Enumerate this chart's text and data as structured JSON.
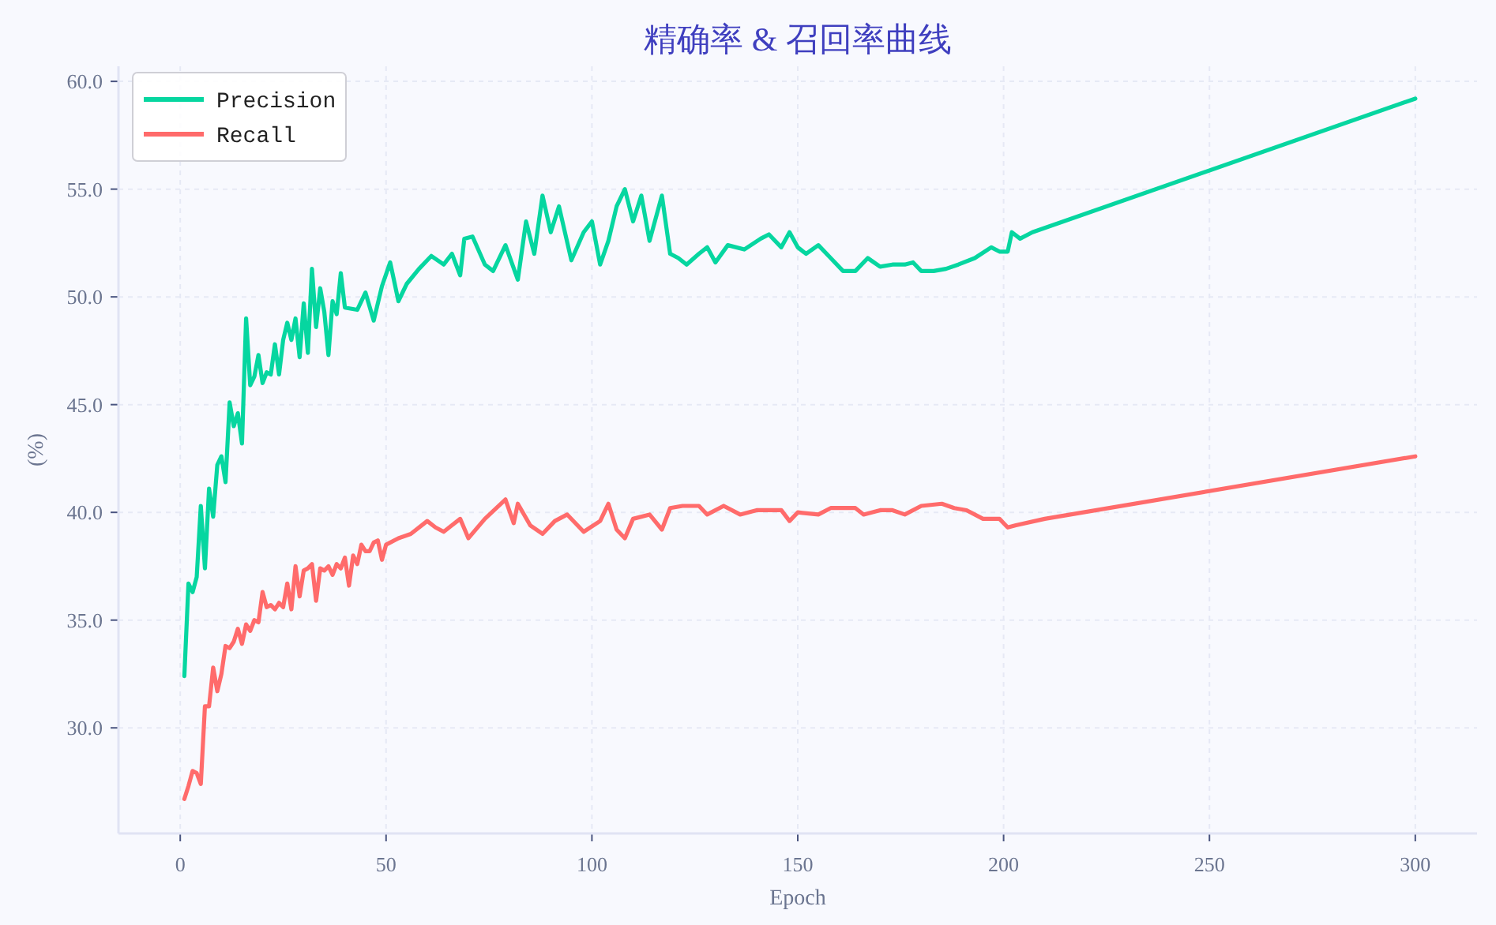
{
  "chart_data": {
    "type": "line",
    "title": "精确率 & 召回率曲线",
    "xlabel": "Epoch",
    "ylabel": "(%)",
    "xlim": [
      -15,
      315
    ],
    "ylim": [
      25.1,
      60.7
    ],
    "xticks": [
      0,
      50,
      100,
      150,
      200,
      250,
      300
    ],
    "yticks": [
      {
        "value": 30,
        "label": "30.0"
      },
      {
        "value": 35,
        "label": "35.0"
      },
      {
        "value": 40,
        "label": "40.0"
      },
      {
        "value": 45,
        "label": "45.0"
      },
      {
        "value": 50,
        "label": "50.0"
      },
      {
        "value": 55,
        "label": "55.0"
      },
      {
        "value": 60,
        "label": "60.0"
      }
    ],
    "grid": true,
    "legend": "top left",
    "marker": "none",
    "line_style": "solid",
    "series": [
      {
        "name": "Precision",
        "color": "#06d6a0",
        "x": [
          1,
          2,
          3,
          4,
          5,
          6,
          7,
          8,
          9,
          10,
          11,
          12,
          13,
          14,
          15,
          16,
          17,
          18,
          19,
          20,
          21,
          22,
          23,
          24,
          25,
          26,
          27,
          28,
          29,
          30,
          31,
          32,
          33,
          34,
          35,
          36,
          37,
          38,
          39,
          40,
          43,
          45,
          47,
          49,
          51,
          53,
          55,
          58,
          61,
          64,
          66,
          68,
          69,
          71,
          74,
          76,
          79,
          82,
          84,
          86,
          88,
          90,
          92,
          95,
          98,
          100,
          102,
          104,
          106,
          108,
          110,
          112,
          114,
          117,
          119,
          121,
          123,
          126,
          128,
          130,
          133,
          137,
          141,
          143,
          146,
          148,
          150,
          152,
          155,
          158,
          161,
          164,
          167,
          170,
          173,
          176,
          178,
          180,
          183,
          186,
          189,
          193,
          197,
          199,
          201,
          202,
          204,
          207,
          300
        ],
        "values": [
          32.4,
          36.7,
          36.3,
          37.0,
          40.3,
          37.4,
          41.1,
          39.8,
          42.2,
          42.6,
          41.4,
          45.1,
          44.0,
          44.6,
          43.2,
          49.0,
          45.9,
          46.3,
          47.3,
          46.0,
          46.5,
          46.4,
          47.8,
          46.4,
          48.0,
          48.8,
          48.0,
          49.0,
          47.2,
          49.7,
          47.4,
          51.3,
          48.6,
          50.4,
          49.3,
          47.3,
          49.8,
          49.2,
          51.1,
          49.5,
          49.4,
          50.2,
          48.9,
          50.5,
          51.6,
          49.8,
          50.6,
          51.3,
          51.9,
          51.5,
          52.0,
          51.0,
          52.7,
          52.8,
          51.5,
          51.2,
          52.4,
          50.8,
          53.5,
          52.0,
          54.7,
          53.0,
          54.2,
          51.7,
          53.0,
          53.5,
          51.5,
          52.6,
          54.2,
          55.0,
          53.5,
          54.7,
          52.6,
          54.7,
          52.0,
          51.8,
          51.5,
          52.0,
          52.3,
          51.6,
          52.4,
          52.2,
          52.7,
          52.9,
          52.3,
          53.0,
          52.3,
          52.0,
          52.4,
          51.8,
          51.2,
          51.2,
          51.8,
          51.4,
          51.5,
          51.5,
          51.6,
          51.2,
          51.2,
          51.3,
          51.5,
          51.8,
          52.3,
          52.1,
          52.1,
          53.0,
          52.7,
          53.0,
          59.2
        ]
      },
      {
        "name": "Recall",
        "color": "#ff6b6b",
        "x": [
          1,
          2,
          3,
          4,
          5,
          6,
          7,
          8,
          9,
          10,
          11,
          12,
          13,
          14,
          15,
          16,
          17,
          18,
          19,
          20,
          21,
          22,
          23,
          24,
          25,
          26,
          27,
          28,
          29,
          30,
          31,
          32,
          33,
          34,
          35,
          36,
          37,
          38,
          39,
          40,
          41,
          42,
          43,
          44,
          45,
          46,
          47,
          48,
          49,
          50,
          53,
          56,
          60,
          62,
          64,
          66,
          68,
          70,
          74,
          79,
          81,
          82,
          85,
          88,
          91,
          94,
          98,
          102,
          104,
          106,
          108,
          110,
          114,
          117,
          119,
          122,
          126,
          128,
          132,
          136,
          140,
          146,
          148,
          150,
          155,
          158,
          164,
          166,
          170,
          173,
          176,
          180,
          185,
          188,
          191,
          195,
          199,
          201,
          203,
          210,
          300
        ],
        "values": [
          26.7,
          27.3,
          28.0,
          27.9,
          27.4,
          31.0,
          31.0,
          32.8,
          31.7,
          32.5,
          33.8,
          33.7,
          34.0,
          34.6,
          33.9,
          34.8,
          34.5,
          35.0,
          34.9,
          36.3,
          35.6,
          35.7,
          35.5,
          35.8,
          35.6,
          36.7,
          35.5,
          37.5,
          36.1,
          37.3,
          37.4,
          37.6,
          35.9,
          37.4,
          37.3,
          37.5,
          37.1,
          37.6,
          37.4,
          37.9,
          36.6,
          38.0,
          37.6,
          38.5,
          38.2,
          38.2,
          38.6,
          38.7,
          37.8,
          38.5,
          38.8,
          39.0,
          39.6,
          39.3,
          39.1,
          39.4,
          39.7,
          38.8,
          39.7,
          40.6,
          39.5,
          40.4,
          39.4,
          39.0,
          39.6,
          39.9,
          39.1,
          39.6,
          40.4,
          39.2,
          38.8,
          39.7,
          39.9,
          39.2,
          40.2,
          40.3,
          40.3,
          39.9,
          40.3,
          39.9,
          40.1,
          40.1,
          39.6,
          40.0,
          39.9,
          40.2,
          40.2,
          39.9,
          40.1,
          40.1,
          39.9,
          40.3,
          40.4,
          40.2,
          40.1,
          39.7,
          39.7,
          39.3,
          39.4,
          39.7,
          42.6
        ]
      }
    ]
  }
}
